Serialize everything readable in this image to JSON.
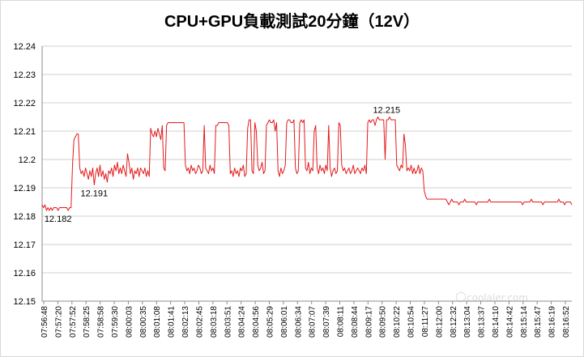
{
  "chart_data": {
    "type": "line",
    "title": "CPU+GPU負載測試20分鐘（12V）",
    "xlabel": "",
    "ylabel": "",
    "ylim": [
      12.15,
      12.24
    ],
    "yticks": [
      12.15,
      12.16,
      12.17,
      12.18,
      12.19,
      12.2,
      12.21,
      12.22,
      12.23,
      12.24
    ],
    "ytick_labels": [
      "12.15",
      "12.16",
      "12.17",
      "12.18",
      "12.19",
      "12.2",
      "12.21",
      "12.22",
      "12.23",
      "12.24"
    ],
    "x_tick_labels": [
      "07:56:48",
      "07:57:20",
      "07:57:52",
      "07:58:25",
      "07:58:58",
      "07:59:30",
      "08:00:03",
      "08:00:35",
      "08:01:08",
      "08:01:41",
      "08:02:13",
      "08:02:45",
      "08:03:18",
      "08:03:51",
      "08:04:24",
      "08:04:56",
      "08:05:29",
      "08:06:01",
      "08:06:34",
      "08:07:07",
      "08:07:39",
      "08:08:11",
      "08:08:44",
      "08:09:17",
      "08:09:50",
      "08:10:22",
      "08:10:54",
      "08:11:27",
      "08:12:00",
      "08:12:32",
      "08:13:04",
      "08:13:37",
      "08:14:10",
      "08:14:42",
      "08:15:14",
      "08:15:47",
      "08:16:19",
      "08:16:52"
    ],
    "grid": true,
    "legend": "none",
    "series": [
      {
        "color": "#e41a1c",
        "values": [
          12.184,
          12.183,
          12.184,
          12.182,
          12.183,
          12.182,
          12.183,
          12.182,
          12.183,
          12.183,
          12.183,
          12.182,
          12.183,
          12.183,
          12.183,
          12.183,
          12.183,
          12.183,
          12.182,
          12.183,
          12.183,
          12.198,
          12.207,
          12.208,
          12.209,
          12.209,
          12.197,
          12.195,
          12.196,
          12.194,
          12.197,
          12.195,
          12.193,
          12.196,
          12.194,
          12.197,
          12.191,
          12.195,
          12.197,
          12.194,
          12.198,
          12.194,
          12.196,
          12.193,
          12.195,
          12.192,
          12.196,
          12.195,
          12.197,
          12.194,
          12.198,
          12.196,
          12.199,
          12.195,
          12.197,
          12.195,
          12.198,
          12.196,
          12.194,
          12.202,
          12.199,
          12.195,
          12.197,
          12.193,
          12.196,
          12.195,
          12.197,
          12.194,
          12.197,
          12.196,
          12.195,
          12.197,
          12.194,
          12.196,
          12.194,
          12.211,
          12.209,
          12.208,
          12.21,
          12.208,
          12.211,
          12.209,
          12.207,
          12.212,
          12.197,
          12.196,
          12.212,
          12.213,
          12.213,
          12.213,
          12.213,
          12.213,
          12.213,
          12.213,
          12.213,
          12.213,
          12.213,
          12.213,
          12.213,
          12.198,
          12.196,
          12.197,
          12.195,
          12.198,
          12.196,
          12.197,
          12.195,
          12.196,
          12.198,
          12.197,
          12.195,
          12.196,
          12.212,
          12.197,
          12.196,
          12.195,
          12.198,
          12.196,
          12.197,
          12.195,
          12.212,
          12.212,
          12.213,
          12.213,
          12.213,
          12.213,
          12.213,
          12.213,
          12.213,
          12.212,
          12.195,
          12.196,
          12.194,
          12.197,
          12.195,
          12.196,
          12.194,
          12.197,
          12.196,
          12.198,
          12.194,
          12.195,
          12.211,
          12.214,
          12.214,
          12.196,
          12.195,
          12.213,
          12.21,
          12.198,
          12.196,
          12.197,
          12.199,
          12.195,
          12.196,
          12.212,
          12.213,
          12.214,
          12.213,
          12.213,
          12.214,
          12.21,
          12.213,
          12.196,
          12.194,
          12.197,
          12.195,
          12.196,
          12.198,
          12.213,
          12.214,
          12.214,
          12.213,
          12.213,
          12.214,
          12.197,
          12.195,
          12.196,
          12.213,
          12.214,
          12.213,
          12.214,
          12.197,
          12.196,
          12.199,
          12.195,
          12.197,
          12.196,
          12.21,
          12.212,
          12.197,
          12.195,
          12.198,
          12.196,
          12.197,
          12.195,
          12.198,
          12.196,
          12.212,
          12.197,
          12.194,
          12.196,
          12.197,
          12.195,
          12.196,
          12.213,
          12.212,
          12.198,
          12.196,
          12.197,
          12.195,
          12.196,
          12.197,
          12.195,
          12.196,
          12.198,
          12.195,
          12.196,
          12.197,
          12.196,
          12.195,
          12.197,
          12.196,
          12.198,
          12.195,
          12.213,
          12.214,
          12.213,
          12.214,
          12.214,
          12.212,
          12.214,
          12.215,
          12.214,
          12.214,
          12.214,
          12.214,
          12.2,
          12.214,
          12.214,
          12.215,
          12.214,
          12.214,
          12.214,
          12.214,
          12.198,
          12.197,
          12.196,
          12.198,
          12.197,
          12.209,
          12.205,
          12.196,
          12.197,
          12.196,
          12.198,
          12.195,
          12.197,
          12.195,
          12.196,
          12.198,
          12.195,
          12.197,
          12.196,
          12.189,
          12.187,
          12.186,
          12.186,
          12.186,
          12.186,
          12.186,
          12.186,
          12.186,
          12.186,
          12.186,
          12.186,
          12.186,
          12.186,
          12.186,
          12.186,
          12.185,
          12.184,
          12.185,
          12.186,
          12.185,
          12.185,
          12.185,
          12.185,
          12.184,
          12.185,
          12.185,
          12.185,
          12.186,
          12.185,
          12.185,
          12.185,
          12.185,
          12.185,
          12.185,
          12.185,
          12.184,
          12.185,
          12.185,
          12.185,
          12.185,
          12.185,
          12.185,
          12.185,
          12.185,
          12.186,
          12.185,
          12.185,
          12.185,
          12.185,
          12.185,
          12.185,
          12.185,
          12.185,
          12.185,
          12.185,
          12.185,
          12.185,
          12.185,
          12.185,
          12.185,
          12.185,
          12.185,
          12.185,
          12.185,
          12.185,
          12.185,
          12.185,
          12.184,
          12.185,
          12.185,
          12.185,
          12.185,
          12.185,
          12.186,
          12.185,
          12.185,
          12.185,
          12.185,
          12.185,
          12.185,
          12.185,
          12.184,
          12.185,
          12.185,
          12.185,
          12.185,
          12.185,
          12.185,
          12.185,
          12.185,
          12.185,
          12.185,
          12.186,
          12.185,
          12.185,
          12.185,
          12.184,
          12.185,
          12.185,
          12.185,
          12.185,
          12.184
        ]
      }
    ],
    "annotations": [
      {
        "text": "12.182",
        "x": 11,
        "y": 12.182
      },
      {
        "text": "12.191",
        "x": 36,
        "y": 12.191
      },
      {
        "text": "12.215",
        "x": 238,
        "y": 12.215
      }
    ]
  },
  "watermark": {
    "text": "coolaler.com"
  }
}
